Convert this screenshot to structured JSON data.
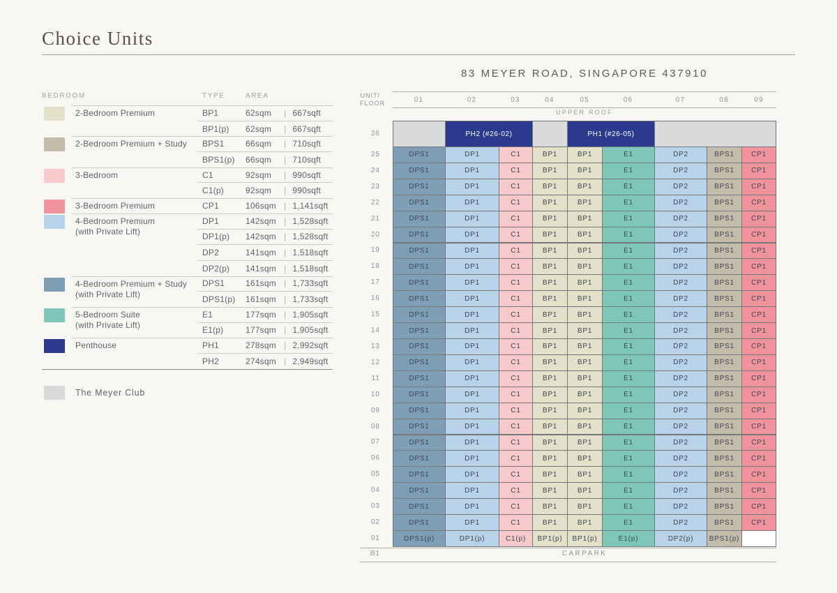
{
  "page": {
    "title": "Choice Units",
    "address": "83 MEYER ROAD, SINGAPORE 437910"
  },
  "colors": {
    "BP": "#e4e1cb",
    "BPS": "#c4bcaa",
    "C": "#f7c9cb",
    "CP": "#f0939d",
    "DP": "#b8d3e9",
    "DPS": "#7e9eb6",
    "E": "#7ec6ba",
    "PH": "#2b3a8d",
    "CLUB": "#d8dadc",
    "EMPTY": "#ffffff"
  },
  "legend": {
    "headers": {
      "bedroom": "BEDROOM",
      "type": "TYPE",
      "area": "AREA"
    },
    "area_separator": "|",
    "groups": [
      {
        "label": "2-Bedroom Premium",
        "sublabel": "",
        "color_key": "BP",
        "rows": [
          {
            "type": "BP1",
            "sqm": "62sqm",
            "sqft": "667sqft"
          },
          {
            "type": "BP1(p)",
            "sqm": "62sqm",
            "sqft": "667sqft"
          }
        ]
      },
      {
        "label": "2-Bedroom Premium + Study",
        "sublabel": "",
        "color_key": "BPS",
        "rows": [
          {
            "type": "BPS1",
            "sqm": "66sqm",
            "sqft": "710sqft"
          },
          {
            "type": "BPS1(p)",
            "sqm": "66sqm",
            "sqft": "710sqft"
          }
        ]
      },
      {
        "label": "3-Bedroom",
        "sublabel": "",
        "color_key": "C",
        "rows": [
          {
            "type": "C1",
            "sqm": "92sqm",
            "sqft": "990sqft"
          },
          {
            "type": "C1(p)",
            "sqm": "92sqm",
            "sqft": "990sqft"
          }
        ]
      },
      {
        "label": "3-Bedroom Premium",
        "sublabel": "",
        "color_key": "CP",
        "rows": [
          {
            "type": "CP1",
            "sqm": "106sqm",
            "sqft": "1,141sqft"
          }
        ]
      },
      {
        "label": "4-Bedroom Premium",
        "sublabel": "(with Private Lift)",
        "color_key": "DP",
        "rows": [
          {
            "type": "DP1",
            "sqm": "142sqm",
            "sqft": "1,528sqft"
          },
          {
            "type": "DP1(p)",
            "sqm": "142sqm",
            "sqft": "1,528sqft"
          },
          {
            "type": "DP2",
            "sqm": "141sqm",
            "sqft": "1,518sqft"
          },
          {
            "type": "DP2(p)",
            "sqm": "141sqm",
            "sqft": "1,518sqft"
          }
        ]
      },
      {
        "label": "4-Bedroom Premium + Study",
        "sublabel": "(with Private Lift)",
        "color_key": "DPS",
        "rows": [
          {
            "type": "DPS1",
            "sqm": "161sqm",
            "sqft": "1,733sqft"
          },
          {
            "type": "DPS1(p)",
            "sqm": "161sqm",
            "sqft": "1,733sqft"
          }
        ]
      },
      {
        "label": "5-Bedroom Suite",
        "sublabel": "(with Private Lift)",
        "color_key": "E",
        "rows": [
          {
            "type": "E1",
            "sqm": "177sqm",
            "sqft": "1,905sqft"
          },
          {
            "type": "E1(p)",
            "sqm": "177sqm",
            "sqft": "1,905sqft"
          }
        ]
      },
      {
        "label": "Penthouse",
        "sublabel": "",
        "color_key": "PH",
        "rows": [
          {
            "type": "PH1",
            "sqm": "278sqm",
            "sqft": "2,992sqft"
          },
          {
            "type": "PH2",
            "sqm": "274sqm",
            "sqft": "2,949sqft"
          }
        ]
      }
    ],
    "club": {
      "label": "The Meyer Club",
      "color_key": "CLUB"
    }
  },
  "grid": {
    "unit_floor_line1": "UNIT/",
    "unit_floor_line2": "FLOOR",
    "columns": [
      "01",
      "02",
      "03",
      "04",
      "05",
      "06",
      "07",
      "08",
      "09"
    ],
    "upper_roof_label": "UPPER ROOF",
    "penthouse_floor": {
      "floor": "26",
      "cells": [
        {
          "label": "",
          "color_key": "CLUB",
          "span": 1
        },
        {
          "label": "PH2 (#26-02)",
          "color_key": "PH",
          "span": 2
        },
        {
          "label": "",
          "color_key": "CLUB",
          "span": 1
        },
        {
          "label": "PH1 (#26-05)",
          "color_key": "PH",
          "span": 2
        },
        {
          "label": "",
          "color_key": "CLUB",
          "span": 3
        }
      ]
    },
    "typical_floors": [
      "25",
      "24",
      "23",
      "22",
      "21",
      "20",
      "19",
      "18",
      "17",
      "16",
      "15",
      "14",
      "13",
      "12",
      "11",
      "10",
      "09",
      "08",
      "07",
      "06",
      "05",
      "04",
      "03",
      "02"
    ],
    "typical_cells": [
      {
        "label": "DPS1",
        "color_key": "DPS"
      },
      {
        "label": "DP1",
        "color_key": "DP"
      },
      {
        "label": "C1",
        "color_key": "C"
      },
      {
        "label": "BP1",
        "color_key": "BP"
      },
      {
        "label": "BP1",
        "color_key": "BP"
      },
      {
        "label": "E1",
        "color_key": "E"
      },
      {
        "label": "DP2",
        "color_key": "DP"
      },
      {
        "label": "BPS1",
        "color_key": "BPS"
      },
      {
        "label": "CP1",
        "color_key": "CP"
      }
    ],
    "first_floor": {
      "floor": "01",
      "cells": [
        {
          "label": "DPS1(p)",
          "color_key": "DPS"
        },
        {
          "label": "DP1(p)",
          "color_key": "DP"
        },
        {
          "label": "C1(p)",
          "color_key": "C"
        },
        {
          "label": "BP1(p)",
          "color_key": "BP"
        },
        {
          "label": "BP1(p)",
          "color_key": "BP"
        },
        {
          "label": "E1(p)",
          "color_key": "E"
        },
        {
          "label": "DP2(p)",
          "color_key": "DP"
        },
        {
          "label": "BPS1(p)",
          "color_key": "BPS"
        },
        {
          "label": "",
          "color_key": "EMPTY"
        }
      ]
    },
    "basement": {
      "floor": "B1",
      "label": "CARPARK"
    }
  }
}
